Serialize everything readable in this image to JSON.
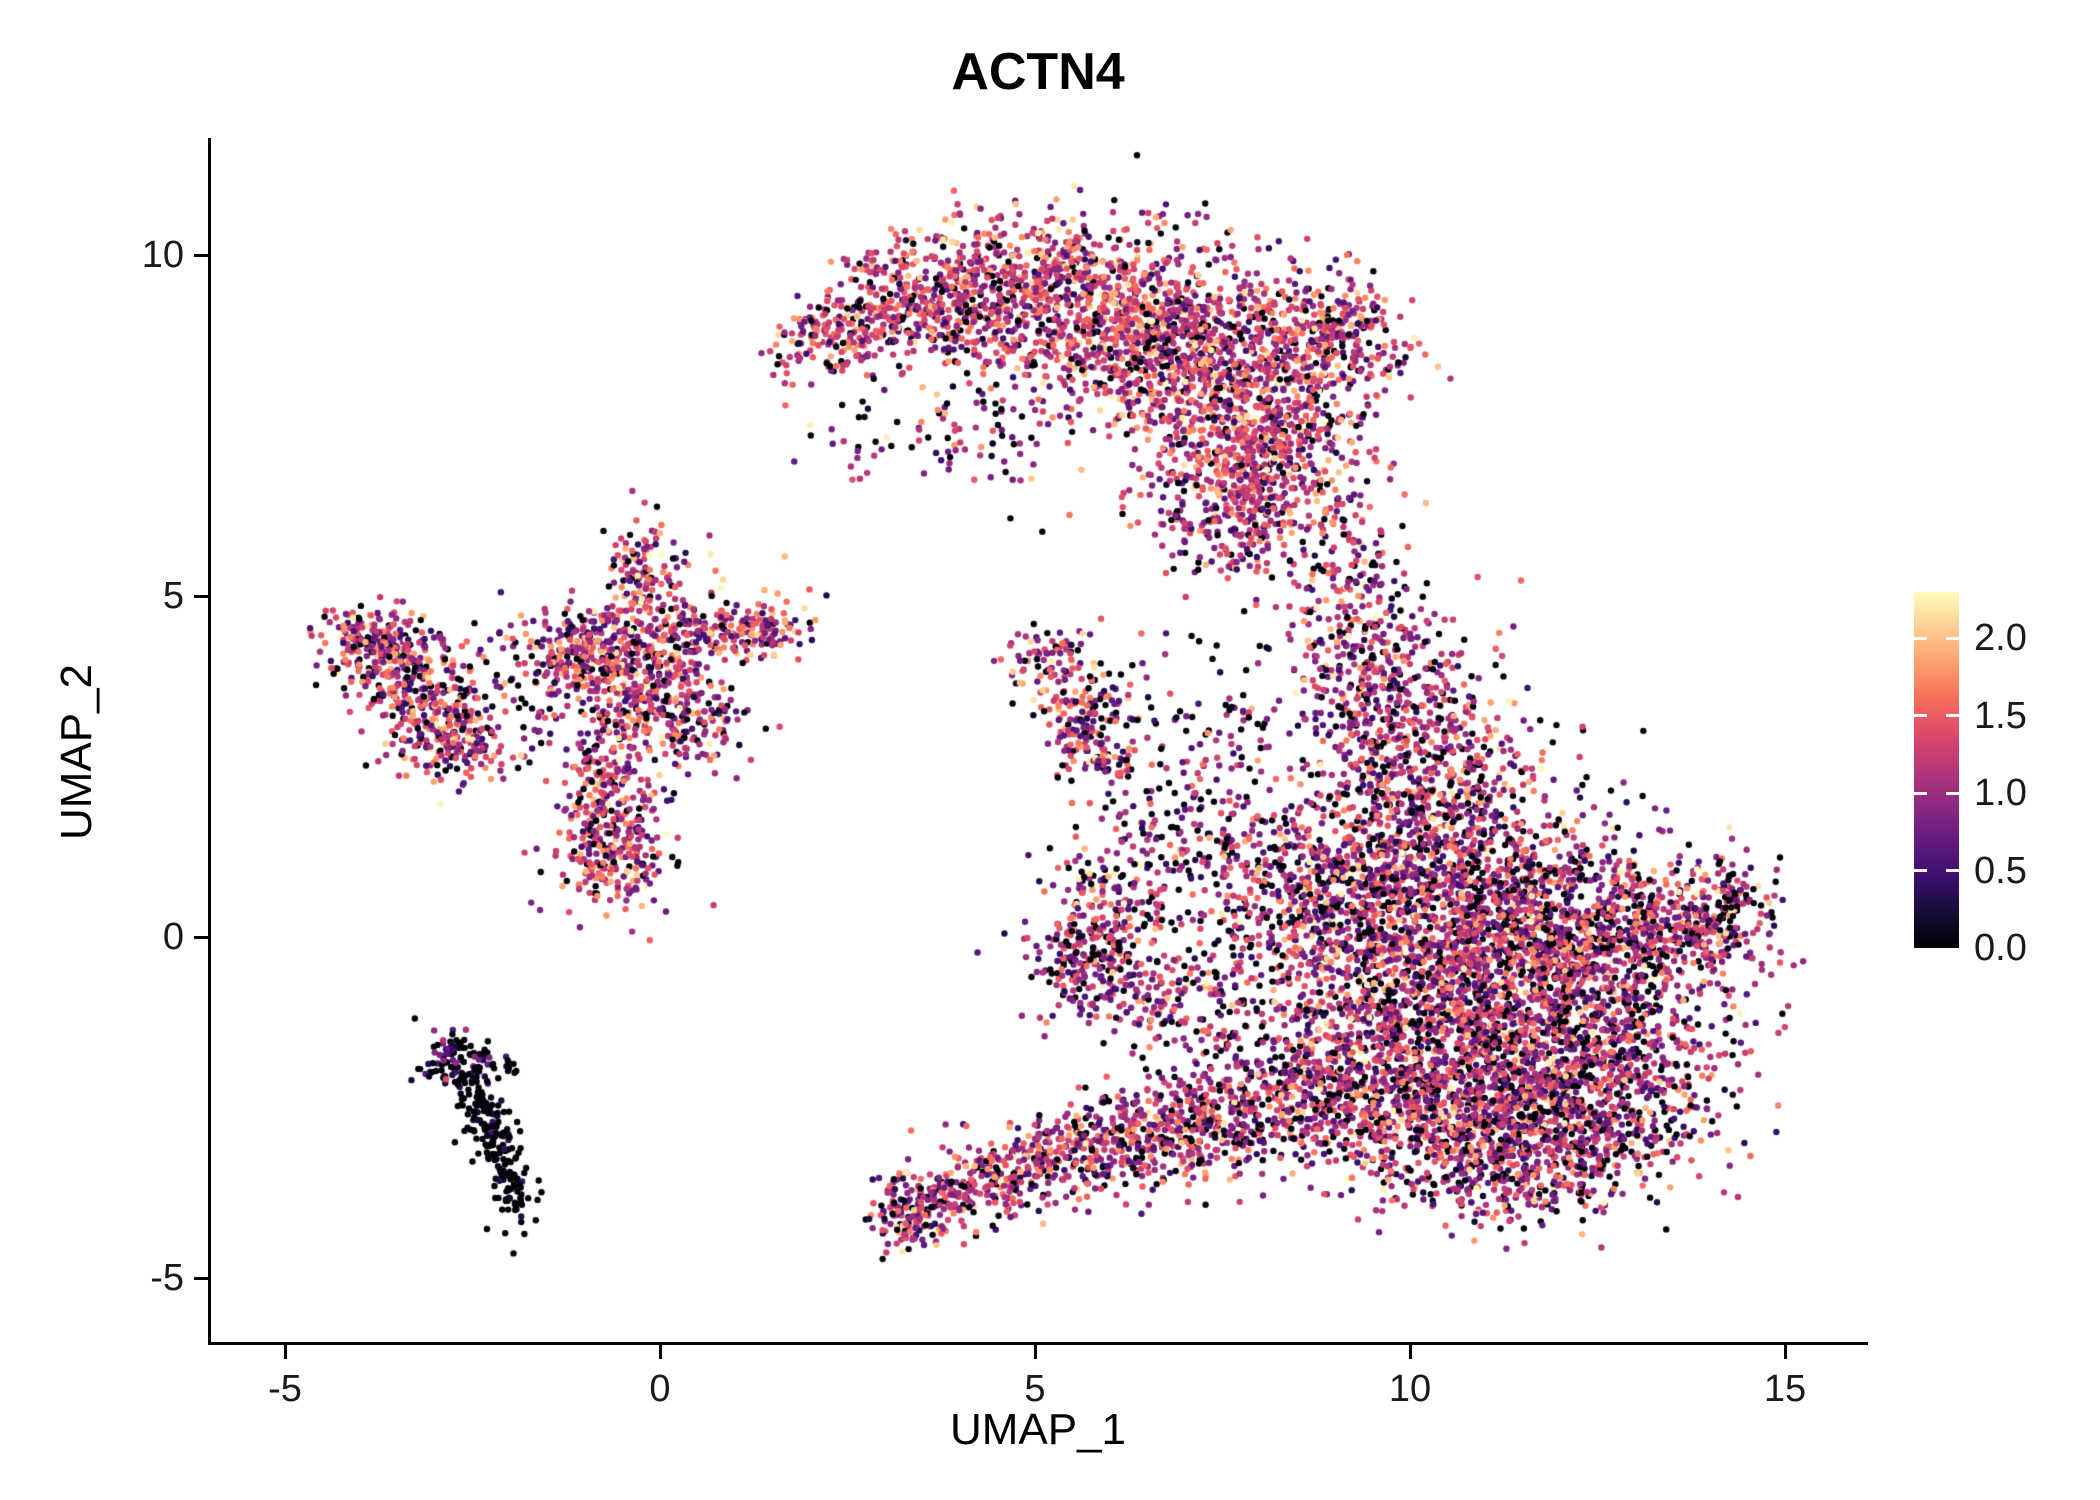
{
  "title": "ACTN4",
  "style": {
    "background": "#ffffff",
    "axis_color": "#000000",
    "tick_label_color": "#1a1a1a",
    "title_color": "#000000"
  },
  "chart_data": {
    "type": "scatter",
    "title": "ACTN4",
    "xlabel": "UMAP_1",
    "ylabel": "UMAP_2",
    "xlim": [
      -6,
      16.1
    ],
    "ylim": [
      -5.95,
      11.7
    ],
    "x_ticks": [
      -5,
      0,
      5,
      10,
      15
    ],
    "y_ticks": [
      -5,
      0,
      5,
      10
    ],
    "grid": false,
    "legend": {
      "position": "right",
      "ticks": [
        0.0,
        0.5,
        1.0,
        1.5,
        2.0
      ]
    },
    "color_scale": {
      "name": "magma",
      "domain": [
        0,
        2.3
      ],
      "stops": [
        [
          0,
          "#000004"
        ],
        [
          0.1,
          "#140E36"
        ],
        [
          0.2,
          "#3B0F70"
        ],
        [
          0.3,
          "#641A80"
        ],
        [
          0.4,
          "#8C2981"
        ],
        [
          0.5,
          "#B5367A"
        ],
        [
          0.6,
          "#DE4968"
        ],
        [
          0.7,
          "#F66E5C"
        ],
        [
          0.8,
          "#FE9F6D"
        ],
        [
          0.9,
          "#FECE91"
        ],
        [
          1,
          "#FCFDBF"
        ]
      ]
    },
    "point_radius_px": 3.2,
    "seed": 20240613,
    "cluster_fields": [
      "n",
      "cx",
      "cy",
      "sx",
      "sy",
      "rot_deg",
      "expr_mean",
      "expr_sd",
      "zero_fraction"
    ],
    "clusters": [
      [
        160,
        2.35,
        8.85,
        0.45,
        0.28,
        20,
        1.25,
        0.45,
        0.1
      ],
      [
        320,
        3.4,
        9.35,
        0.6,
        0.45,
        5,
        1.25,
        0.45,
        0.1
      ],
      [
        480,
        4.9,
        9.55,
        0.75,
        0.55,
        0,
        1.25,
        0.45,
        0.1
      ],
      [
        650,
        6.2,
        9.1,
        0.8,
        0.7,
        0,
        1.3,
        0.45,
        0.1
      ],
      [
        650,
        7.3,
        8.2,
        0.75,
        0.75,
        0,
        1.25,
        0.45,
        0.12
      ],
      [
        420,
        8.1,
        7.1,
        0.6,
        0.7,
        0,
        1.2,
        0.45,
        0.12
      ],
      [
        280,
        8.6,
        8.7,
        0.55,
        0.55,
        0,
        1.25,
        0.45,
        0.1
      ],
      [
        240,
        7.7,
        6.2,
        0.55,
        0.5,
        0,
        1.2,
        0.45,
        0.12
      ],
      [
        110,
        9.3,
        8.8,
        0.35,
        0.45,
        0,
        1.2,
        0.45,
        0.12
      ],
      [
        130,
        4.6,
        8.1,
        1.1,
        0.8,
        10,
        1.1,
        0.5,
        0.25
      ],
      [
        30,
        3.4,
        7.2,
        0.8,
        0.45,
        0,
        1.0,
        0.5,
        0.3
      ],
      [
        200,
        9.15,
        5.1,
        0.4,
        0.9,
        0,
        1.1,
        0.5,
        0.15
      ],
      [
        330,
        9.6,
        3.6,
        0.55,
        0.8,
        0,
        1.15,
        0.5,
        0.16
      ],
      [
        420,
        10.4,
        2.3,
        0.7,
        0.8,
        0,
        1.15,
        0.5,
        0.16
      ],
      [
        420,
        9.7,
        1.1,
        0.75,
        0.8,
        0,
        1.15,
        0.5,
        0.18
      ],
      [
        700,
        10.9,
        0.4,
        1.0,
        0.9,
        0,
        1.15,
        0.5,
        0.18
      ],
      [
        800,
        12.1,
        0.1,
        1.1,
        0.65,
        0,
        1.1,
        0.5,
        0.2
      ],
      [
        260,
        13.8,
        0.2,
        0.5,
        0.45,
        0,
        1.1,
        0.5,
        0.2
      ],
      [
        40,
        14.35,
        0.45,
        0.18,
        0.25,
        0,
        1.1,
        0.5,
        0.2
      ],
      [
        1000,
        11.3,
        -1.2,
        1.25,
        0.85,
        0,
        1.15,
        0.5,
        0.18
      ],
      [
        700,
        12.4,
        -2.0,
        0.95,
        0.75,
        0,
        1.1,
        0.5,
        0.2
      ],
      [
        650,
        10.6,
        -2.6,
        0.95,
        0.7,
        0,
        1.15,
        0.5,
        0.18
      ],
      [
        380,
        11.6,
        -3.3,
        0.8,
        0.45,
        10,
        1.1,
        0.5,
        0.2
      ],
      [
        420,
        9.5,
        -1.6,
        0.7,
        0.8,
        0,
        1.15,
        0.5,
        0.18
      ],
      [
        300,
        9.0,
        0.3,
        0.55,
        0.7,
        0,
        1.15,
        0.5,
        0.18
      ],
      [
        260,
        8.6,
        -2.3,
        0.6,
        0.6,
        0,
        1.1,
        0.5,
        0.2
      ],
      [
        240,
        6.0,
        0.3,
        0.45,
        0.7,
        0,
        1.1,
        0.5,
        0.2
      ],
      [
        120,
        5.6,
        -0.4,
        0.3,
        0.45,
        0,
        1.1,
        0.5,
        0.2
      ],
      [
        200,
        7.0,
        -0.9,
        0.6,
        0.5,
        0,
        1.1,
        0.5,
        0.2
      ],
      [
        190,
        7.9,
        0.8,
        0.5,
        0.6,
        0,
        1.1,
        0.5,
        0.2
      ],
      [
        140,
        7.7,
        2.9,
        0.9,
        0.9,
        0,
        1.0,
        0.5,
        0.25
      ],
      [
        90,
        6.9,
        1.7,
        0.55,
        0.55,
        0,
        1.0,
        0.5,
        0.22
      ],
      [
        150,
        3.35,
        -4.0,
        0.3,
        0.3,
        0,
        1.15,
        0.45,
        0.15
      ],
      [
        160,
        4.2,
        -3.65,
        0.45,
        0.28,
        12,
        1.15,
        0.45,
        0.15
      ],
      [
        210,
        5.2,
        -3.3,
        0.55,
        0.3,
        15,
        1.15,
        0.45,
        0.15
      ],
      [
        260,
        6.3,
        -2.95,
        0.55,
        0.35,
        15,
        1.15,
        0.45,
        0.15
      ],
      [
        260,
        7.4,
        -2.65,
        0.5,
        0.45,
        10,
        1.15,
        0.45,
        0.15
      ],
      [
        420,
        -0.45,
        3.95,
        0.55,
        0.5,
        0,
        1.2,
        0.5,
        0.12
      ],
      [
        120,
        -0.3,
        5.2,
        0.22,
        0.45,
        0,
        1.2,
        0.5,
        0.12
      ],
      [
        150,
        0.75,
        4.45,
        0.5,
        0.28,
        10,
        1.2,
        0.5,
        0.12
      ],
      [
        120,
        -1.2,
        4.2,
        0.38,
        0.26,
        0,
        1.2,
        0.5,
        0.12
      ],
      [
        200,
        -0.7,
        2.3,
        0.3,
        0.55,
        0,
        1.2,
        0.5,
        0.12
      ],
      [
        210,
        -0.6,
        1.15,
        0.35,
        0.4,
        0,
        1.2,
        0.5,
        0.12
      ],
      [
        140,
        0.3,
        3.2,
        0.4,
        0.4,
        0,
        1.2,
        0.5,
        0.12
      ],
      [
        60,
        1.4,
        4.5,
        0.28,
        0.18,
        0,
        1.2,
        0.5,
        0.12
      ],
      [
        25,
        0.1,
        5.6,
        0.5,
        0.25,
        0,
        1.1,
        0.5,
        0.2
      ],
      [
        190,
        -3.55,
        4.15,
        0.42,
        0.3,
        10,
        1.2,
        0.5,
        0.12
      ],
      [
        230,
        -3.1,
        3.3,
        0.42,
        0.42,
        0,
        1.2,
        0.5,
        0.12
      ],
      [
        120,
        -2.7,
        2.85,
        0.3,
        0.3,
        0,
        1.2,
        0.5,
        0.14
      ],
      [
        80,
        -4.0,
        4.35,
        0.25,
        0.25,
        0,
        1.2,
        0.5,
        0.12
      ],
      [
        45,
        -1.85,
        3.4,
        0.45,
        0.65,
        0,
        0.7,
        0.5,
        0.45
      ],
      [
        90,
        5.2,
        4.0,
        0.3,
        0.25,
        0,
        1.1,
        0.5,
        0.15
      ],
      [
        130,
        5.7,
        3.2,
        0.28,
        0.42,
        -20,
        1.1,
        0.5,
        0.15
      ],
      [
        50,
        6.0,
        2.65,
        0.2,
        0.2,
        0,
        1.1,
        0.5,
        0.15
      ],
      [
        80,
        -2.75,
        -1.8,
        0.25,
        0.22,
        0,
        0.5,
        0.4,
        0.5
      ],
      [
        25,
        -2.35,
        -1.75,
        0.28,
        0.12,
        -20,
        0.4,
        0.35,
        0.55
      ],
      [
        80,
        -2.45,
        -2.45,
        0.16,
        0.35,
        15,
        0.15,
        0.2,
        0.8
      ],
      [
        70,
        -2.15,
        -3.1,
        0.15,
        0.35,
        12,
        0.15,
        0.2,
        0.8
      ],
      [
        50,
        -1.95,
        -3.7,
        0.13,
        0.28,
        8,
        0.15,
        0.2,
        0.8
      ]
    ]
  }
}
